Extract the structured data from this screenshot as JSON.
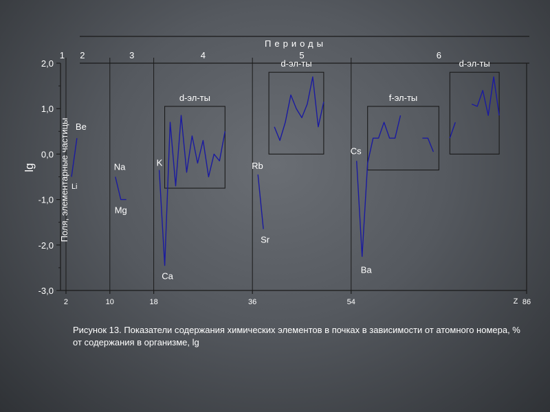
{
  "chart_data": {
    "type": "line",
    "title": "Периоды",
    "ylabel": "lg",
    "ylabel_secondary": "Поля, элементарные частицы",
    "xlabel": "Z",
    "xlim": [
      1,
      86
    ],
    "ylim": [
      -3.0,
      2.0
    ],
    "y_ticks": [
      "2,0",
      "1,0",
      "0,0",
      "-1,0",
      "-2,0",
      "-3,0"
    ],
    "y_tick_values": [
      2,
      1,
      0,
      -1,
      -2,
      -3
    ],
    "x_ticks": [
      "2",
      "10",
      "18",
      "36",
      "54",
      "86"
    ],
    "x_tick_values": [
      2,
      10,
      18,
      36,
      54,
      86
    ],
    "period_boundaries": [
      2,
      10,
      18,
      36,
      54
    ],
    "periods": [
      {
        "label": "1",
        "z": 1.3
      },
      {
        "label": "2",
        "z": 5
      },
      {
        "label": "3",
        "z": 14
      },
      {
        "label": "4",
        "z": 27
      },
      {
        "label": "5",
        "z": 45
      },
      {
        "label": "6",
        "z": 70
      }
    ],
    "series": [
      {
        "points": [
          [
            3,
            -0.5
          ],
          [
            4,
            0.35
          ]
        ]
      },
      {
        "points": [
          [
            11,
            -0.5
          ],
          [
            12,
            -1.0
          ],
          [
            13,
            -1.0
          ]
        ]
      },
      {
        "points": [
          [
            19,
            -0.35
          ],
          [
            20,
            -2.45
          ],
          [
            21,
            0.7
          ],
          [
            22,
            -0.7
          ],
          [
            23,
            0.85
          ],
          [
            24,
            -0.4
          ],
          [
            25,
            0.4
          ],
          [
            26,
            -0.2
          ],
          [
            27,
            0.3
          ],
          [
            28,
            -0.5
          ],
          [
            29,
            0.0
          ],
          [
            30,
            -0.15
          ],
          [
            31,
            0.5
          ]
        ]
      },
      {
        "points": [
          [
            37,
            -0.45
          ],
          [
            38,
            -1.65
          ]
        ]
      },
      {
        "points": [
          [
            40,
            0.6
          ],
          [
            41,
            0.3
          ],
          [
            42,
            0.7
          ],
          [
            43,
            1.3
          ],
          [
            44,
            1.0
          ],
          [
            45,
            0.8
          ],
          [
            46,
            1.1
          ],
          [
            47,
            1.7
          ],
          [
            48,
            0.6
          ],
          [
            49,
            1.15
          ]
        ]
      },
      {
        "points": [
          [
            55,
            -0.15
          ],
          [
            56,
            -2.25
          ],
          [
            57,
            -0.2
          ],
          [
            58,
            0.35
          ],
          [
            59,
            0.35
          ],
          [
            60,
            0.7
          ],
          [
            61,
            0.35
          ],
          [
            62,
            0.35
          ],
          [
            63,
            0.85
          ]
        ]
      },
      {
        "points": [
          [
            67,
            0.35
          ],
          [
            68,
            0.35
          ],
          [
            69,
            0.05
          ]
        ]
      },
      {
        "points": [
          [
            72,
            0.35
          ],
          [
            73,
            0.7
          ]
        ]
      },
      {
        "points": [
          [
            76,
            1.1
          ],
          [
            77,
            1.05
          ],
          [
            78,
            1.4
          ],
          [
            79,
            0.85
          ],
          [
            80,
            1.7
          ],
          [
            81,
            0.85
          ]
        ]
      }
    ],
    "element_labels": [
      {
        "text": "Li",
        "z": 3,
        "y": -0.55,
        "anchor": "start",
        "size": 11,
        "dx": 0,
        "dy": 14
      },
      {
        "text": "Be",
        "z": 4,
        "y": 0.35,
        "anchor": "start",
        "size": 13,
        "dx": -2,
        "dy": -12
      },
      {
        "text": "Na",
        "z": 11,
        "y": -0.5,
        "anchor": "start",
        "size": 13,
        "dx": -2,
        "dy": -10
      },
      {
        "text": "Mg",
        "z": 12,
        "y": -1.0,
        "anchor": "middle",
        "size": 13,
        "dx": 0,
        "dy": 20
      },
      {
        "text": "K",
        "z": 19,
        "y": -0.35,
        "anchor": "start",
        "size": 13,
        "dx": -4,
        "dy": -6
      },
      {
        "text": "Ca",
        "z": 20,
        "y": -2.45,
        "anchor": "middle",
        "size": 13,
        "dx": 4,
        "dy": 20
      },
      {
        "text": "Rb",
        "z": 37,
        "y": -0.45,
        "anchor": "start",
        "size": 13,
        "dx": -9,
        "dy": -8
      },
      {
        "text": "Sr",
        "z": 38,
        "y": -1.65,
        "anchor": "start",
        "size": 13,
        "dx": -4,
        "dy": 20
      },
      {
        "text": "Cs",
        "z": 55,
        "y": -0.15,
        "anchor": "start",
        "size": 13,
        "dx": -9,
        "dy": -10
      },
      {
        "text": "Ba",
        "z": 56,
        "y": -2.25,
        "anchor": "middle",
        "size": 13,
        "dx": 6,
        "dy": 24
      }
    ],
    "groups": [
      {
        "label": "d-эл-ты",
        "z_from": 20,
        "z_to": 31,
        "y_from": -0.75,
        "y_to": 1.05
      },
      {
        "label": "d-эл-ты",
        "z_from": 39,
        "z_to": 49,
        "y_from": 0.0,
        "y_to": 1.8
      },
      {
        "label": "f-эл-ты",
        "z_from": 57,
        "z_to": 70,
        "y_from": -0.35,
        "y_to": 1.05
      },
      {
        "label": "d-эл-ты",
        "z_from": 72,
        "z_to": 81,
        "y_from": 0.0,
        "y_to": 1.8
      }
    ],
    "grid": false,
    "colors": {
      "line": "#1a1aa0",
      "axis": "#1a1a1a",
      "text": "#ffffff"
    }
  },
  "caption": "Рисунок 13. Показатели содержания химических элементов в почках в зависимости от атомного номера, % от содержания в организме, lg"
}
